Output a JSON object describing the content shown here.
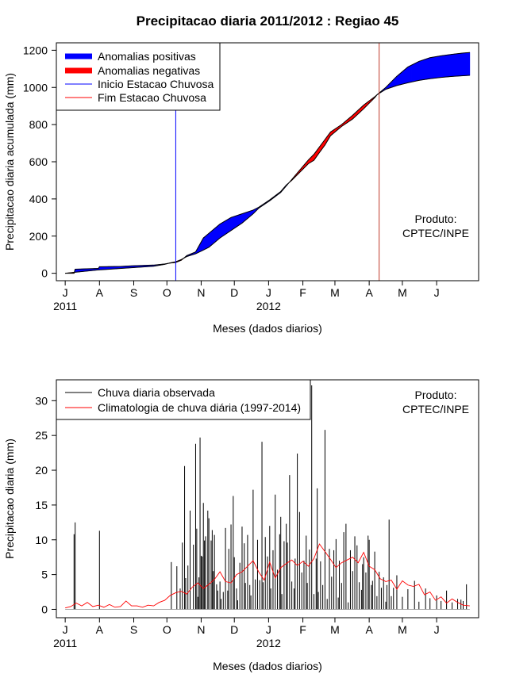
{
  "chart_data": [
    {
      "type": "area",
      "title": "Precipitacao diaria 2011/2012 : Regiao 45",
      "xlabel": "Meses (dados diarios)",
      "ylabel": "Precipitacao diaria acumulada (mm)",
      "ylim": [
        -40,
        1240
      ],
      "xlim_days": [
        -8,
        374
      ],
      "x_unit": "days since 2011-07-01",
      "yticks": [
        0,
        200,
        400,
        600,
        800,
        1000,
        1200
      ],
      "month_ticks": [
        {
          "label": "J",
          "day": 0
        },
        {
          "label": "A",
          "day": 31
        },
        {
          "label": "S",
          "day": 62
        },
        {
          "label": "O",
          "day": 92
        },
        {
          "label": "N",
          "day": 123
        },
        {
          "label": "D",
          "day": 153
        },
        {
          "label": "J",
          "day": 184
        },
        {
          "label": "F",
          "day": 215
        },
        {
          "label": "M",
          "day": 244
        },
        {
          "label": "A",
          "day": 275
        },
        {
          "label": "M",
          "day": 305
        },
        {
          "label": "J",
          "day": 336
        }
      ],
      "year_labels": [
        {
          "label": "2011",
          "day": 0
        },
        {
          "label": "2012",
          "day": 184
        }
      ],
      "legend": {
        "position": "top-left",
        "entries": [
          {
            "label": "Anomalias positivas",
            "color": "#0000ff",
            "style": "thick"
          },
          {
            "label": "Anomalias negativas",
            "color": "#ff0000",
            "style": "thick"
          },
          {
            "label": "Inicio Estacao Chuvosa",
            "color": "#0000ff",
            "style": "thin"
          },
          {
            "label": "Fim Estacao Chuvosa",
            "color": "#ff0000",
            "style": "thin"
          }
        ]
      },
      "vlines": [
        {
          "name": "inicio",
          "day": 100,
          "color": "#0000ff"
        },
        {
          "name": "fim",
          "day": 284,
          "color": "#c0392b"
        }
      ],
      "annotation": [
        "Produto:",
        "CPTEC/INPE"
      ],
      "series": [
        {
          "name": "Observada acumulada",
          "days": [
            0,
            8,
            9,
            30,
            31,
            50,
            60,
            80,
            90,
            95,
            100,
            105,
            110,
            118,
            125,
            130,
            135,
            140,
            150,
            160,
            170,
            175,
            185,
            195,
            200,
            205,
            210,
            215,
            220,
            225,
            230,
            235,
            240,
            250,
            260,
            270,
            280,
            282,
            290,
            300,
            310,
            320,
            330,
            340,
            350,
            360,
            366
          ],
          "values": [
            0,
            0,
            22,
            26,
            35,
            37,
            40,
            44,
            50,
            55,
            58,
            70,
            95,
            115,
            190,
            215,
            240,
            265,
            300,
            320,
            340,
            355,
            395,
            440,
            475,
            500,
            530,
            560,
            590,
            608,
            650,
            690,
            740,
            790,
            830,
            885,
            945,
            960,
            1000,
            1060,
            1110,
            1140,
            1160,
            1170,
            1178,
            1185,
            1188
          ]
        },
        {
          "name": "Climatologia acumulada",
          "days": [
            0,
            30,
            60,
            80,
            90,
            95,
            100,
            105,
            110,
            118,
            125,
            130,
            135,
            140,
            150,
            160,
            170,
            175,
            185,
            195,
            200,
            205,
            210,
            215,
            220,
            225,
            230,
            235,
            240,
            250,
            260,
            270,
            280,
            282,
            290,
            300,
            310,
            320,
            330,
            340,
            350,
            360,
            366
          ],
          "values": [
            0,
            18,
            30,
            38,
            48,
            56,
            62,
            74,
            90,
            105,
            125,
            140,
            165,
            190,
            230,
            270,
            320,
            350,
            390,
            435,
            470,
            505,
            540,
            575,
            610,
            640,
            680,
            720,
            760,
            800,
            850,
            905,
            950,
            960,
            990,
            1010,
            1025,
            1038,
            1047,
            1054,
            1059,
            1063,
            1065
          ]
        }
      ]
    },
    {
      "type": "bar",
      "xlabel": "Meses (dados diarios)",
      "ylabel": "Precipitacao diaria (mm)",
      "ylim": [
        -1.2,
        33
      ],
      "xlim_days": [
        -8,
        374
      ],
      "x_unit": "days since 2011-07-01",
      "yticks": [
        0,
        5,
        10,
        15,
        20,
        25,
        30
      ],
      "month_ticks": [
        {
          "label": "J",
          "day": 0
        },
        {
          "label": "A",
          "day": 31
        },
        {
          "label": "S",
          "day": 62
        },
        {
          "label": "O",
          "day": 92
        },
        {
          "label": "N",
          "day": 123
        },
        {
          "label": "D",
          "day": 153
        },
        {
          "label": "J",
          "day": 184
        },
        {
          "label": "F",
          "day": 215
        },
        {
          "label": "M",
          "day": 244
        },
        {
          "label": "A",
          "day": 275
        },
        {
          "label": "M",
          "day": 305
        },
        {
          "label": "J",
          "day": 336
        }
      ],
      "year_labels": [
        {
          "label": "2011",
          "day": 0
        },
        {
          "label": "2012",
          "day": 184
        }
      ],
      "legend": {
        "position": "top-left",
        "entries": [
          {
            "label": "Chuva diaria observada",
            "color": "#000000",
            "style": "thin"
          },
          {
            "label": "Climatologia de chuva diária (1997-2014)",
            "color": "#ff0000",
            "style": "thin"
          }
        ]
      },
      "annotation": [
        "Produto:",
        "CPTEC/INPE"
      ],
      "series": [
        {
          "name": "Chuva diaria observada",
          "color": "#000000",
          "days": [
            8,
            9,
            31,
            96,
            101,
            104,
            106,
            108,
            109,
            111,
            113,
            116,
            118,
            119,
            120,
            121,
            122,
            123,
            124,
            125,
            126,
            127,
            129,
            130,
            132,
            133,
            134,
            135,
            137,
            138,
            140,
            141,
            143,
            145,
            147,
            148,
            150,
            152,
            153,
            155,
            156,
            158,
            160,
            162,
            163,
            165,
            167,
            168,
            170,
            172,
            174,
            176,
            178,
            179,
            181,
            183,
            185,
            186,
            188,
            190,
            192,
            194,
            195,
            196,
            198,
            200,
            201,
            203,
            205,
            207,
            208,
            210,
            212,
            214,
            216,
            218,
            219,
            221,
            223,
            225,
            227,
            228,
            229,
            231,
            233,
            235,
            237,
            239,
            241,
            243,
            245,
            247,
            248,
            250,
            252,
            254,
            256,
            258,
            260,
            262,
            264,
            266,
            268,
            269,
            270,
            272,
            274,
            275,
            277,
            278,
            280,
            282,
            284,
            286,
            288,
            290,
            291,
            293,
            295,
            297,
            300,
            305,
            310,
            316,
            320,
            326,
            330,
            336,
            340,
            345,
            350,
            355,
            358,
            360,
            363
          ],
          "values": [
            10.8,
            12.5,
            11.3,
            6.8,
            6.2,
            3.0,
            9.6,
            20.6,
            4.5,
            6.3,
            14.2,
            9.3,
            23.8,
            11.6,
            1.8,
            4.6,
            24.7,
            7.7,
            7.6,
            15.3,
            9.9,
            10.5,
            14.2,
            13.1,
            9.9,
            11.4,
            5.5,
            10.7,
            3.6,
            2.7,
            4.0,
            1.5,
            2.5,
            11.7,
            2.7,
            8.7,
            12.2,
            16.3,
            7.5,
            3.0,
            1.3,
            6.7,
            11.9,
            9.5,
            3.8,
            10.7,
            3.5,
            2.0,
            17.2,
            4.3,
            10.0,
            4.2,
            24.1,
            3.9,
            10.4,
            7.6,
            12.0,
            3.0,
            8.5,
            16.5,
            5.7,
            10.8,
            13.3,
            2.2,
            9.8,
            12.3,
            9.6,
            19.3,
            4.0,
            3.0,
            7.3,
            22.4,
            14.0,
            5.3,
            7.0,
            10.6,
            3.8,
            8.6,
            32.2,
            2.2,
            7.3,
            17.4,
            2.5,
            6.9,
            3.5,
            25.8,
            1.5,
            8.7,
            4.7,
            8.5,
            10.1,
            1.7,
            7.0,
            3.8,
            11.1,
            12.3,
            1.0,
            8.5,
            5.5,
            10.5,
            9.2,
            3.9,
            2.8,
            6.5,
            7.5,
            5.3,
            10.6,
            10.0,
            3.5,
            4.1,
            8.3,
            1.9,
            5.4,
            3.1,
            4.6,
            1.1,
            3.5,
            12.9,
            1.9,
            3.1,
            4.9,
            1.8,
            2.9,
            4.1,
            1.1,
            3.0,
            1.6,
            2.0,
            1.2,
            2.7,
            1.0,
            1.5,
            1.4,
            1.2,
            3.6
          ]
        },
        {
          "name": "Climatologia de chuva diária (1997-2014)",
          "color": "#ff0000",
          "days": [
            0,
            5,
            10,
            15,
            20,
            25,
            30,
            35,
            40,
            45,
            50,
            55,
            60,
            65,
            70,
            75,
            80,
            85,
            90,
            95,
            100,
            105,
            110,
            115,
            120,
            125,
            130,
            135,
            140,
            145,
            150,
            155,
            160,
            165,
            170,
            175,
            180,
            185,
            190,
            195,
            200,
            205,
            210,
            215,
            220,
            225,
            230,
            235,
            240,
            245,
            250,
            255,
            260,
            265,
            270,
            275,
            280,
            285,
            290,
            295,
            300,
            305,
            310,
            315,
            320,
            325,
            330,
            335,
            340,
            345,
            350,
            355,
            360,
            366
          ],
          "values": [
            0.2,
            0.4,
            0.9,
            0.5,
            1.0,
            0.4,
            0.6,
            0.3,
            0.7,
            0.3,
            0.4,
            1.2,
            0.5,
            0.5,
            0.3,
            0.6,
            0.5,
            1.0,
            1.3,
            2.0,
            2.4,
            2.6,
            2.2,
            3.2,
            3.8,
            3.0,
            3.6,
            4.3,
            5.4,
            4.0,
            3.8,
            5.0,
            5.4,
            6.2,
            7.0,
            5.4,
            4.2,
            6.8,
            4.5,
            6.0,
            6.6,
            7.1,
            6.3,
            6.9,
            6.2,
            7.3,
            9.4,
            8.3,
            7.2,
            6.0,
            6.7,
            7.1,
            7.5,
            6.7,
            8.2,
            6.2,
            5.7,
            4.4,
            4.0,
            4.2,
            2.9,
            4.1,
            3.5,
            3.3,
            3.6,
            2.1,
            2.5,
            1.3,
            1.8,
            0.9,
            1.5,
            1.0,
            0.6,
            0.5
          ]
        }
      ]
    }
  ]
}
